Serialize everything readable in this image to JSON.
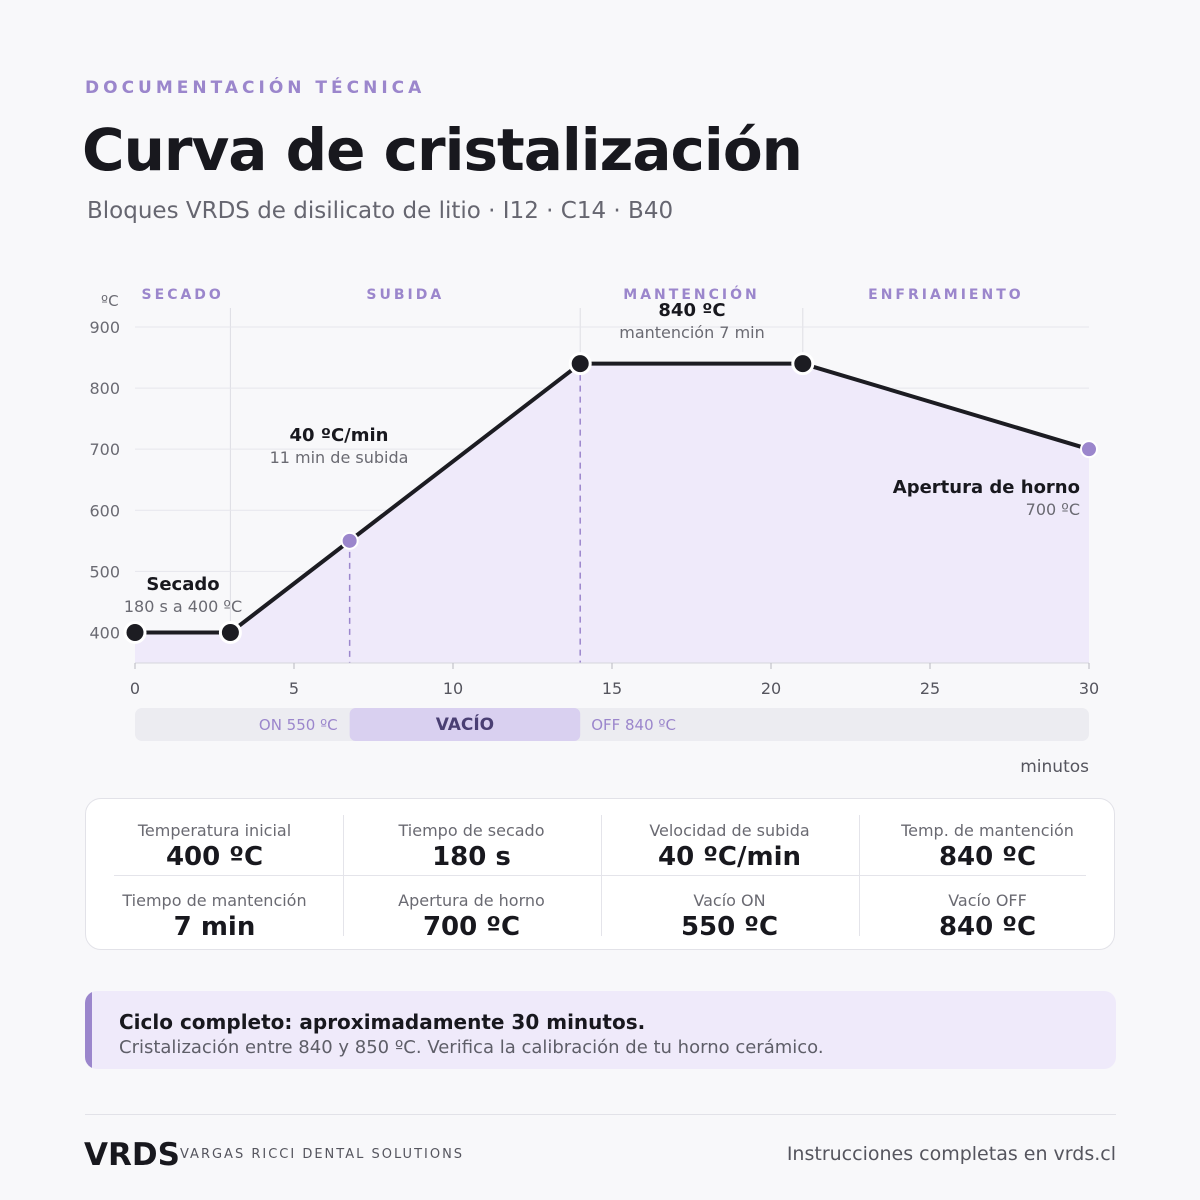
{
  "header": {
    "eyebrow": "DOCUMENTACIÓN TÉCNICA",
    "title": "Curva de cristalización",
    "subtitle": "Bloques VRDS de disilicato de litio · I12 · C14 · B40"
  },
  "colors": {
    "accent": "#9b86cc",
    "line": "#1c1c22",
    "fill": "#efeafa",
    "vacuum_band": "#d9d0f0",
    "track": "#ececf1"
  },
  "chart_data": {
    "type": "line",
    "title": "",
    "xlabel": "minutos",
    "ylabel": "ºC",
    "xlim": [
      0,
      30
    ],
    "ylim": [
      350,
      900
    ],
    "xticks": [
      0,
      5,
      10,
      15,
      20,
      25,
      30
    ],
    "yticks": [
      400,
      500,
      600,
      700,
      800,
      900
    ],
    "series": [
      {
        "values": [
          {
            "x": 0,
            "y": 400
          },
          {
            "x": 3,
            "y": 400
          },
          {
            "x": 14,
            "y": 840
          },
          {
            "x": 21,
            "y": 840
          },
          {
            "x": 30,
            "y": 700
          }
        ]
      }
    ],
    "markers": [
      {
        "x": 0,
        "y": 400,
        "kind": "main"
      },
      {
        "x": 3,
        "y": 400,
        "kind": "main"
      },
      {
        "x": 6.75,
        "y": 550,
        "kind": "accent"
      },
      {
        "x": 14,
        "y": 840,
        "kind": "main"
      },
      {
        "x": 21,
        "y": 840,
        "kind": "main"
      },
      {
        "x": 30,
        "y": 700,
        "kind": "accent"
      }
    ],
    "phases": [
      {
        "label": "SECADO",
        "start": 0,
        "end": 3
      },
      {
        "label": "SUBIDA",
        "start": 3,
        "end": 14
      },
      {
        "label": "MANTENCIÓN",
        "start": 14,
        "end": 21
      },
      {
        "label": "ENFRIAMIENTO",
        "start": 21,
        "end": 30
      }
    ],
    "annotations": [
      {
        "title": "Secado",
        "text": "180 s a 400 ºC"
      },
      {
        "title": "40 ºC/min",
        "text": "11 min de subida"
      },
      {
        "title": "840 ºC",
        "text": "mantención 7 min"
      },
      {
        "title": "Apertura de horno",
        "text": "700 ºC"
      }
    ],
    "vacuum": {
      "label": "VACÍO",
      "on_label": "ON 550 ºC",
      "off_label": "OFF 840 ºC",
      "start": 6.75,
      "end": 14
    }
  },
  "stats": [
    {
      "label": "Temperatura inicial",
      "value": "400 ºC"
    },
    {
      "label": "Tiempo de secado",
      "value": "180 s"
    },
    {
      "label": "Velocidad de subida",
      "value": "40 ºC/min"
    },
    {
      "label": "Temp. de mantención",
      "value": "840 ºC"
    },
    {
      "label": "Tiempo de mantención",
      "value": "7 min"
    },
    {
      "label": "Apertura de horno",
      "value": "700 ºC"
    },
    {
      "label": "Vacío ON",
      "value": "550 ºC"
    },
    {
      "label": "Vacío OFF",
      "value": "840 ºC"
    }
  ],
  "note": {
    "title": "Ciclo completo: aproximadamente 30 minutos.",
    "text": "Cristalización entre 840 y 850 ºC. Verifica la calibración de tu horno cerámico."
  },
  "footer": {
    "brand": "VRDS",
    "brand_sub": "VARGAS RICCI DENTAL SOLUTIONS",
    "link_text": "Instrucciones completas en vrds.cl"
  }
}
